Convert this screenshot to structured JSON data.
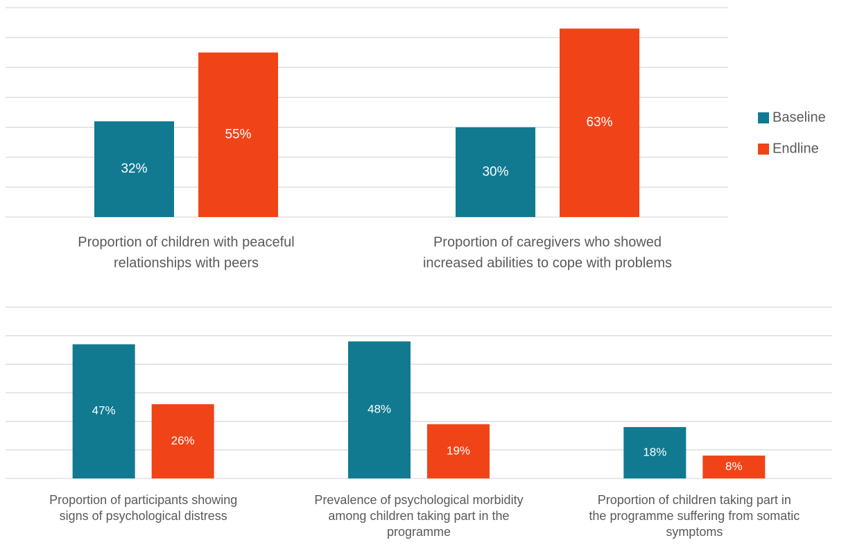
{
  "chart_data": [
    {
      "type": "bar",
      "categories": [
        [
          "Proportion of children with peaceful",
          "relationships with peers"
        ],
        [
          "Proportion of caregivers who showed",
          "increased abilities to cope with problems"
        ]
      ],
      "series": [
        {
          "name": "Baseline",
          "color": "#117a91",
          "values": [
            32,
            30
          ],
          "value_labels": [
            "32%",
            "30%"
          ]
        },
        {
          "name": "Endline",
          "color": "#f04418",
          "values": [
            55,
            63
          ],
          "value_labels": [
            "55%",
            "63%"
          ]
        }
      ],
      "ylim": [
        0,
        70
      ],
      "yticks": [
        0,
        10,
        20,
        30,
        40,
        50,
        60,
        70
      ],
      "grid": true,
      "legend": "right"
    },
    {
      "type": "bar",
      "categories": [
        [
          "Proportion of participants showing",
          "signs of psychological distress"
        ],
        [
          "Prevalence of psychological morbidity",
          "among children taking part in the",
          "programme"
        ],
        [
          "Proportion of children taking part in",
          "the programme suffering from somatic",
          "symptoms"
        ]
      ],
      "series": [
        {
          "color": "#117a91",
          "values": [
            47,
            48,
            18
          ],
          "value_labels": [
            "47%",
            "48%",
            "18%"
          ]
        },
        {
          "color": "#f04418",
          "values": [
            26,
            19,
            8
          ],
          "value_labels": [
            "26%",
            "19%",
            "8%"
          ]
        }
      ],
      "ylim": [
        0,
        60
      ],
      "yticks": [
        0,
        10,
        20,
        30,
        40,
        50,
        60
      ],
      "grid": true
    }
  ]
}
